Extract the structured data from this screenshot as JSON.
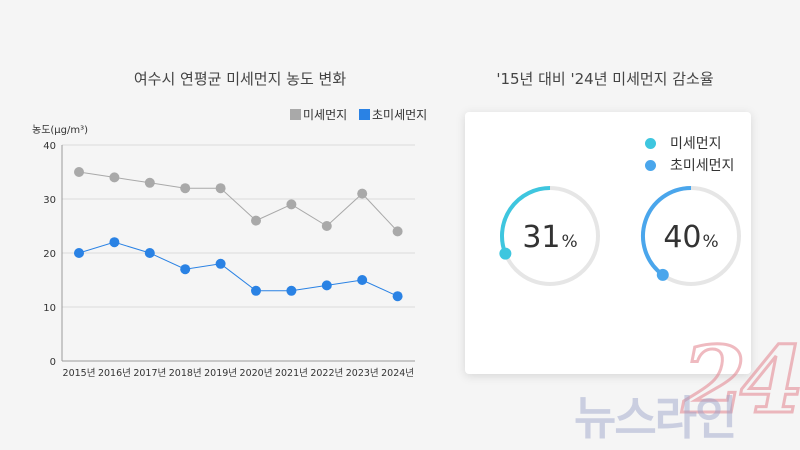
{
  "charts": {
    "line_title": "여수시 연평균 미세먼지 농도 변화",
    "gauge_title": "'15년 대비 '24년 미세먼지 감소율"
  },
  "chart_data": [
    {
      "type": "line",
      "title": "여수시 연평균 미세먼지 농도 변화",
      "ylabel": "농도(μg/m³)",
      "xlabel": "",
      "categories": [
        "2015년",
        "2016년",
        "2017년",
        "2018년",
        "2019년",
        "2020년",
        "2021년",
        "2022년",
        "2023년",
        "2024년"
      ],
      "ylim": [
        0,
        40
      ],
      "yticks": [
        "0",
        "10",
        "20",
        "30",
        "40"
      ],
      "grid": true,
      "legend": "top-right",
      "series": [
        {
          "name": "미세먼지",
          "color": "#a9a9a9",
          "values": [
            35,
            34,
            33,
            32,
            32,
            26,
            29,
            25,
            31,
            24
          ]
        },
        {
          "name": "초미세먼지",
          "color": "#2a82e4",
          "values": [
            20,
            22,
            20,
            17,
            18,
            13,
            13,
            14,
            15,
            12
          ]
        }
      ]
    },
    {
      "type": "pie",
      "title": "'15년 대비 '24년 미세먼지 감소율",
      "legend": "top-right",
      "unit": "%",
      "series": [
        {
          "name": "미세먼지",
          "color": "#3ec6df",
          "value": 31
        },
        {
          "name": "초미세먼지",
          "color": "#4aa6ec",
          "value": 40
        }
      ]
    }
  ],
  "watermark": {
    "numeral": "24",
    "text": "뉴스라인"
  }
}
